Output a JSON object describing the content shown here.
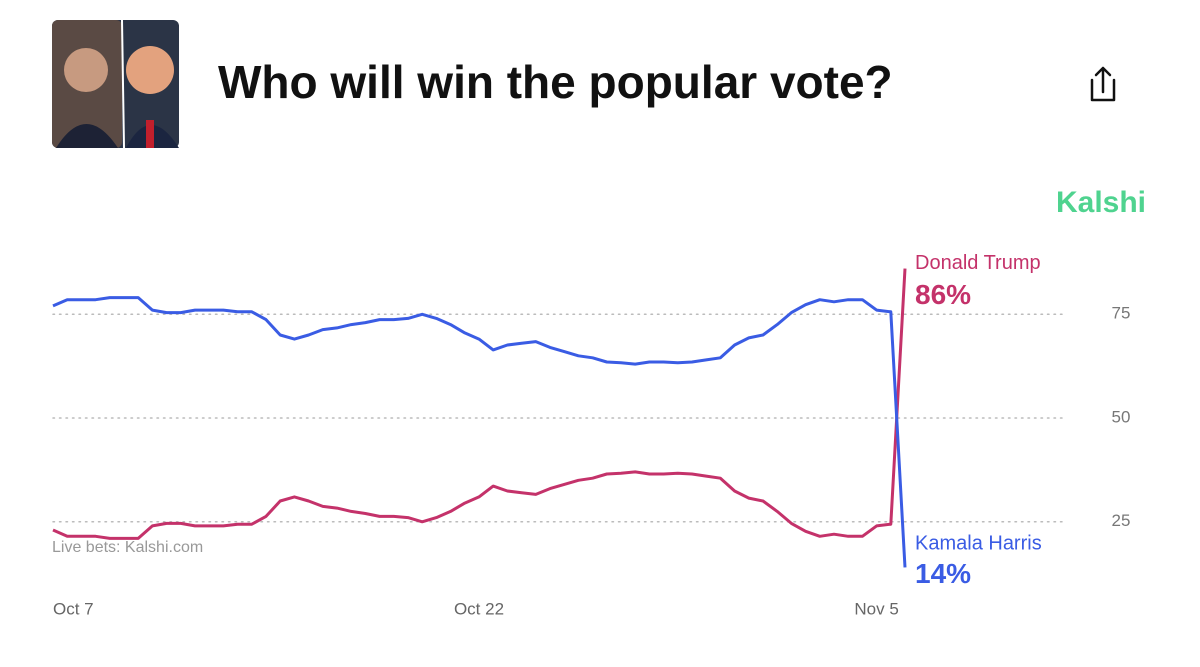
{
  "chart_data": {
    "type": "line",
    "title": "Who will win the popular vote?",
    "brand": "Kalshi",
    "source": "Live bets: Kalshi.com",
    "categories": [
      "Oct 7",
      null,
      null,
      null,
      null,
      null,
      null,
      null,
      null,
      null,
      null,
      null,
      null,
      null,
      null,
      null,
      null,
      null,
      null,
      null,
      null,
      null,
      null,
      null,
      null,
      null,
      null,
      null,
      null,
      null,
      "Oct 22",
      null,
      null,
      null,
      null,
      null,
      null,
      null,
      null,
      null,
      null,
      null,
      null,
      null,
      null,
      null,
      null,
      null,
      null,
      null,
      null,
      null,
      null,
      null,
      null,
      null,
      null,
      null,
      "Nov 5",
      null,
      null
    ],
    "series": [
      {
        "name": "Donald Trump",
        "color": "#c4326a",
        "values": [
          23,
          21.5,
          21.5,
          21.5,
          21,
          21,
          21,
          24,
          24.6,
          24.6,
          24,
          24,
          24,
          24.4,
          24.4,
          26.3,
          30,
          31,
          30,
          28.7,
          28.3,
          27.5,
          27,
          26.3,
          26.3,
          26,
          25,
          26,
          27.5,
          29.5,
          31,
          33.6,
          32.4,
          32,
          31.6,
          33,
          34,
          35,
          35.5,
          36.5,
          36.7,
          37,
          36.5,
          36.5,
          36.7,
          36.5,
          36,
          35.5,
          32.4,
          30.7,
          30,
          27.5,
          24.6,
          22.7,
          21.5,
          22,
          21.5,
          21.5,
          24,
          24.4,
          86
        ],
        "value_labels": [
          null,
          null,
          null,
          null,
          null,
          null,
          null,
          null,
          null,
          null,
          null,
          null,
          null,
          null,
          null,
          null,
          null,
          null,
          null,
          null,
          null,
          null,
          null,
          null,
          null,
          null,
          null,
          null,
          null,
          null,
          null,
          null,
          null,
          null,
          null,
          null,
          null,
          null,
          null,
          null,
          null,
          null,
          null,
          null,
          null,
          null,
          null,
          null,
          null,
          null,
          null,
          null,
          null,
          null,
          null,
          null,
          null,
          null,
          null,
          null,
          "86%"
        ]
      },
      {
        "name": "Kamala Harris",
        "color": "#3a5ce4",
        "values": [
          77,
          78.5,
          78.5,
          78.5,
          79,
          79,
          79,
          76,
          75.4,
          75.4,
          76,
          76,
          76,
          75.6,
          75.6,
          73.7,
          70,
          69,
          70,
          71.3,
          71.7,
          72.5,
          73,
          73.7,
          73.7,
          74,
          75,
          74,
          72.5,
          70.5,
          69,
          66.4,
          67.6,
          68,
          68.4,
          67,
          66,
          65,
          64.5,
          63.5,
          63.3,
          63,
          63.5,
          63.5,
          63.3,
          63.5,
          64,
          64.5,
          67.6,
          69.3,
          70,
          72.5,
          75.4,
          77.3,
          78.5,
          78,
          78.5,
          78.5,
          76,
          75.6,
          14
        ],
        "value_labels": [
          null,
          null,
          null,
          null,
          null,
          null,
          null,
          null,
          null,
          null,
          null,
          null,
          null,
          null,
          null,
          null,
          null,
          null,
          null,
          null,
          null,
          null,
          null,
          null,
          null,
          null,
          null,
          null,
          null,
          null,
          null,
          null,
          null,
          null,
          null,
          null,
          null,
          null,
          null,
          null,
          null,
          null,
          null,
          null,
          null,
          null,
          null,
          null,
          null,
          null,
          null,
          null,
          null,
          null,
          null,
          null,
          null,
          null,
          null,
          null,
          "14%"
        ]
      }
    ],
    "ylim": [
      10,
      90
    ],
    "yticks": [
      25,
      50,
      75
    ],
    "grid": true
  }
}
